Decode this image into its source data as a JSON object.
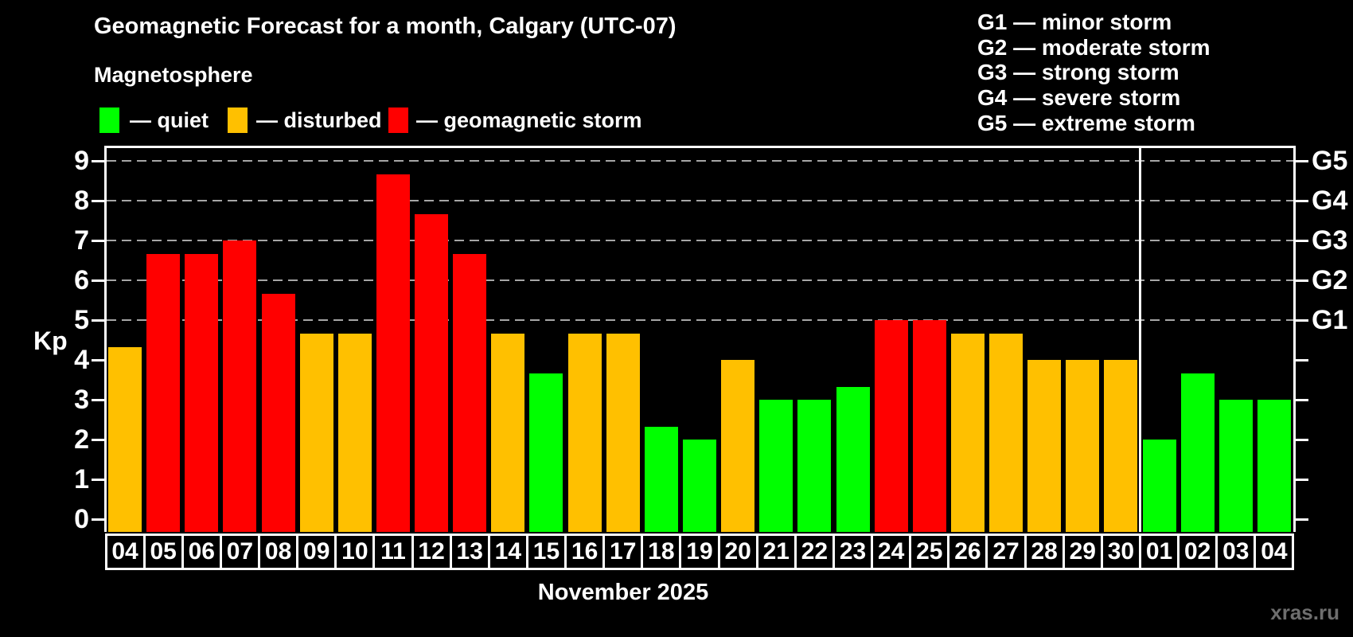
{
  "page": {
    "title": "Geomagnetic Forecast for a month, Calgary (UTC-07)",
    "subtitle": "Magnetosphere",
    "month_label": "November 2025",
    "watermark": "xras.ru"
  },
  "colors": {
    "quiet": "#00ff00",
    "disturbed": "#ffc000",
    "storm": "#ff0000",
    "background": "#000000",
    "text": "#ffffff",
    "gridline": "#a6a6a6",
    "watermark_text": "#6e6e6e"
  },
  "legend": {
    "items": [
      {
        "key": "quiet",
        "label": "— quiet",
        "color": "#00ff00"
      },
      {
        "key": "disturbed",
        "label": "— disturbed",
        "color": "#ffc000"
      },
      {
        "key": "storm",
        "label": "— geomagnetic storm",
        "color": "#ff0000"
      }
    ]
  },
  "g_legend": {
    "items": [
      "G1 — minor storm",
      "G2 — moderate storm",
      "G3 — strong storm",
      "G4 — severe storm",
      "G5 — extreme storm"
    ]
  },
  "axis": {
    "kp_label": "Kp",
    "y_ticks": [
      0,
      1,
      2,
      3,
      4,
      5,
      6,
      7,
      8,
      9
    ],
    "right_labels": [
      {
        "label": "G1",
        "kp": 5
      },
      {
        "label": "G2",
        "kp": 6
      },
      {
        "label": "G3",
        "kp": 7
      },
      {
        "label": "G4",
        "kp": 8
      },
      {
        "label": "G5",
        "kp": 9
      }
    ]
  },
  "chart_data": {
    "type": "bar",
    "title": "Geomagnetic Forecast for a month, Calgary (UTC-07)",
    "xlabel": "November 2025",
    "ylabel": "Kp",
    "ylim": [
      0,
      9.4
    ],
    "grid": "dashed horizontal",
    "gridlines_kp": [
      5,
      6,
      7,
      8,
      9
    ],
    "legend_position": "top-left",
    "categories": [
      "04",
      "05",
      "06",
      "07",
      "08",
      "09",
      "10",
      "11",
      "12",
      "13",
      "14",
      "15",
      "16",
      "17",
      "18",
      "19",
      "20",
      "21",
      "22",
      "23",
      "24",
      "25",
      "26",
      "27",
      "28",
      "29",
      "30",
      "01",
      "02",
      "03",
      "04"
    ],
    "values": [
      4.33,
      6.67,
      6.67,
      7.0,
      5.67,
      4.67,
      4.67,
      8.67,
      7.67,
      6.67,
      4.67,
      3.67,
      4.67,
      4.67,
      2.33,
      2.0,
      4.0,
      3.0,
      3.0,
      3.33,
      5.0,
      5.0,
      4.67,
      4.67,
      4.0,
      4.0,
      4.0,
      2.0,
      3.67,
      3.0,
      3.0
    ],
    "statuses": [
      "disturbed",
      "storm",
      "storm",
      "storm",
      "storm",
      "disturbed",
      "disturbed",
      "storm",
      "storm",
      "storm",
      "disturbed",
      "quiet",
      "disturbed",
      "disturbed",
      "quiet",
      "quiet",
      "disturbed",
      "quiet",
      "quiet",
      "quiet",
      "storm",
      "storm",
      "disturbed",
      "disturbed",
      "disturbed",
      "disturbed",
      "disturbed",
      "quiet",
      "quiet",
      "quiet",
      "quiet"
    ],
    "month_separator_after_index": 26
  }
}
